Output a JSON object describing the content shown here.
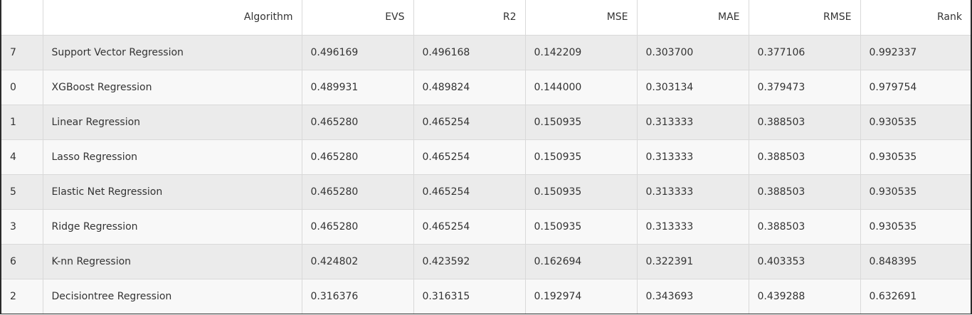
{
  "table": {
    "headers": [
      "",
      "Algorithm",
      "EVS",
      "R2",
      "MSE",
      "MAE",
      "RMSE",
      "Rank"
    ],
    "rows": [
      {
        "index": "7",
        "algorithm": "Support Vector Regression",
        "evs": "0.496169",
        "r2": "0.496168",
        "mse": "0.142209",
        "mae": "0.303700",
        "rmse": "0.377106",
        "rank": "0.992337"
      },
      {
        "index": "0",
        "algorithm": "XGBoost Regression",
        "evs": "0.489931",
        "r2": "0.489824",
        "mse": "0.144000",
        "mae": "0.303134",
        "rmse": "0.379473",
        "rank": "0.979754"
      },
      {
        "index": "1",
        "algorithm": "Linear Regression",
        "evs": "0.465280",
        "r2": "0.465254",
        "mse": "0.150935",
        "mae": "0.313333",
        "rmse": "0.388503",
        "rank": "0.930535"
      },
      {
        "index": "4",
        "algorithm": "Lasso Regression",
        "evs": "0.465280",
        "r2": "0.465254",
        "mse": "0.150935",
        "mae": "0.313333",
        "rmse": "0.388503",
        "rank": "0.930535"
      },
      {
        "index": "5",
        "algorithm": "Elastic Net Regression",
        "evs": "0.465280",
        "r2": "0.465254",
        "mse": "0.150935",
        "mae": "0.313333",
        "rmse": "0.388503",
        "rank": "0.930535"
      },
      {
        "index": "3",
        "algorithm": "Ridge Regression",
        "evs": "0.465280",
        "r2": "0.465254",
        "mse": "0.150935",
        "mae": "0.313333",
        "rmse": "0.388503",
        "rank": "0.930535"
      },
      {
        "index": "6",
        "algorithm": "K-nn Regression",
        "evs": "0.424802",
        "r2": "0.423592",
        "mse": "0.162694",
        "mae": "0.322391",
        "rmse": "0.403353",
        "rank": "0.848395"
      },
      {
        "index": "2",
        "algorithm": "Decisiontree Regression",
        "evs": "0.316376",
        "r2": "0.316315",
        "mse": "0.192974",
        "mae": "0.343693",
        "rmse": "0.439288",
        "rank": "0.632691"
      }
    ]
  }
}
